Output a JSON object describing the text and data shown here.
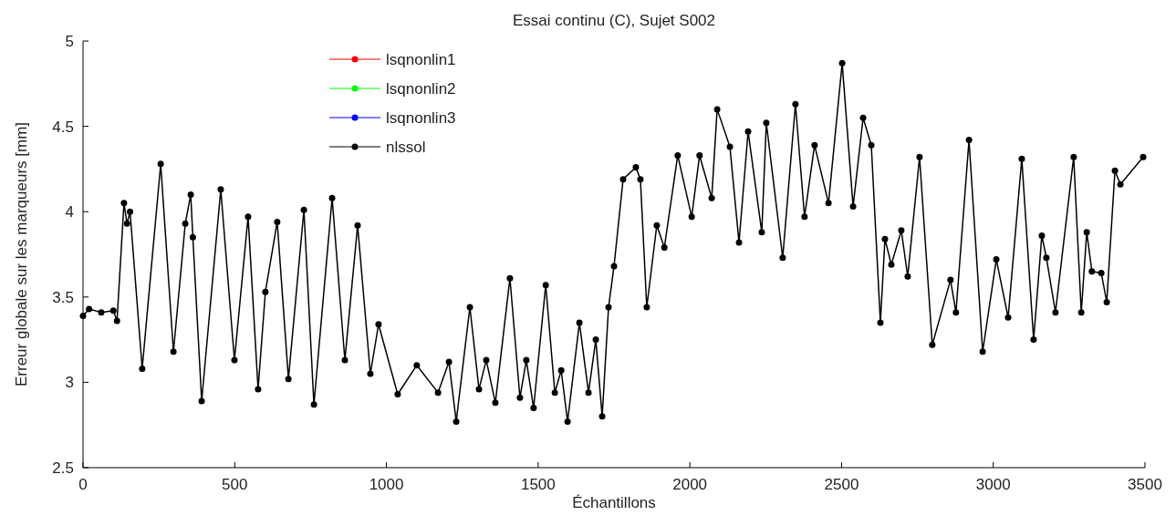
{
  "chart_data": {
    "type": "line",
    "title": "Essai continu (C), Sujet S002",
    "xlabel": "Échantillons",
    "ylabel": "Erreur globale sur les marqueurs [mm]",
    "x": [
      0,
      20,
      60,
      100,
      112,
      135,
      145,
      155,
      195,
      256,
      298,
      337,
      355,
      362,
      391,
      454,
      499,
      544,
      577,
      601,
      640,
      677,
      728,
      761,
      821,
      863,
      905,
      947,
      974,
      1037,
      1100,
      1170,
      1206,
      1230,
      1275,
      1305,
      1329,
      1359,
      1407,
      1440,
      1461,
      1485,
      1525,
      1555,
      1576,
      1597,
      1636,
      1666,
      1690,
      1711,
      1732,
      1750,
      1780,
      1822,
      1837,
      1858,
      1891,
      1916,
      1960,
      2006,
      2032,
      2072,
      2090,
      2132,
      2162,
      2192,
      2237,
      2252,
      2306,
      2348,
      2378,
      2411,
      2457,
      2502,
      2538,
      2571,
      2598,
      2628,
      2643,
      2664,
      2697,
      2718,
      2757,
      2799,
      2859,
      2877,
      2920,
      2965,
      3010,
      3049,
      3094,
      3133,
      3160,
      3175,
      3205,
      3265,
      3290,
      3308,
      3325,
      3356,
      3374,
      3401,
      3419,
      3494
    ],
    "series": [
      {
        "name": "lsqnonlin1",
        "color": "#ff0000",
        "values": [
          null,
          null,
          null,
          null,
          null,
          null,
          null,
          null,
          null,
          null,
          null,
          null,
          null,
          null,
          null,
          null,
          null,
          null,
          null,
          null,
          null,
          null,
          null,
          null,
          null,
          null,
          null,
          null,
          null,
          null,
          null,
          null,
          null,
          null,
          null,
          null,
          null,
          null,
          null,
          null,
          null,
          null,
          null,
          null,
          null,
          null,
          null,
          null,
          null,
          null,
          null,
          null,
          null,
          null,
          null,
          null,
          null,
          null,
          null,
          null,
          null,
          null,
          null,
          null,
          null,
          null,
          null,
          null,
          null,
          null,
          null,
          null,
          null,
          null,
          null,
          null,
          null,
          null,
          null,
          null,
          null,
          null,
          null,
          null,
          null,
          null,
          null,
          null,
          null,
          null,
          null,
          null,
          null,
          null,
          null,
          null,
          null,
          null,
          null,
          null,
          null,
          null,
          null,
          null
        ]
      },
      {
        "name": "lsqnonlin2",
        "color": "#00ff00",
        "values": [
          null,
          null,
          null,
          null,
          null,
          null,
          null,
          null,
          null,
          null,
          null,
          null,
          null,
          null,
          null,
          null,
          null,
          null,
          null,
          null,
          null,
          null,
          null,
          null,
          null,
          null,
          null,
          null,
          null,
          null,
          null,
          null,
          null,
          null,
          null,
          null,
          null,
          null,
          null,
          null,
          null,
          null,
          null,
          null,
          null,
          null,
          null,
          null,
          null,
          null,
          null,
          null,
          null,
          null,
          null,
          null,
          null,
          null,
          null,
          null,
          null,
          null,
          null,
          null,
          null,
          null,
          null,
          null,
          null,
          null,
          null,
          null,
          null,
          null,
          null,
          null,
          null,
          null,
          null,
          null,
          null,
          null,
          null,
          null,
          null,
          null,
          null,
          null,
          null,
          null,
          null,
          null,
          null,
          null,
          null,
          null,
          null,
          null,
          null,
          null,
          null,
          null,
          null,
          null
        ]
      },
      {
        "name": "lsqnonlin3",
        "color": "#0000ff",
        "values": [
          null,
          null,
          null,
          null,
          null,
          null,
          null,
          null,
          null,
          null,
          null,
          null,
          null,
          null,
          null,
          null,
          null,
          null,
          null,
          null,
          null,
          null,
          null,
          null,
          null,
          null,
          null,
          null,
          null,
          null,
          null,
          null,
          null,
          null,
          null,
          null,
          null,
          null,
          null,
          null,
          null,
          null,
          null,
          null,
          null,
          null,
          null,
          null,
          null,
          null,
          null,
          null,
          null,
          null,
          null,
          null,
          null,
          null,
          null,
          null,
          null,
          null,
          null,
          null,
          null,
          null,
          null,
          null,
          null,
          null,
          null,
          null,
          null,
          null,
          null,
          null,
          null,
          null,
          null,
          null,
          null,
          null,
          null,
          null,
          null,
          null,
          null,
          null,
          null,
          null,
          null,
          null,
          null,
          null,
          null,
          null,
          null,
          null,
          null,
          null,
          null,
          null,
          null,
          null
        ]
      },
      {
        "name": "nlssol",
        "color": "#000000",
        "values": [
          3.39,
          3.43,
          3.41,
          3.42,
          3.36,
          4.05,
          3.93,
          4.0,
          3.08,
          4.28,
          3.18,
          3.93,
          4.1,
          3.85,
          2.89,
          4.13,
          3.13,
          3.97,
          2.96,
          3.53,
          3.94,
          3.02,
          4.01,
          2.87,
          4.08,
          3.13,
          3.92,
          3.05,
          3.34,
          2.93,
          3.1,
          2.94,
          3.12,
          2.77,
          3.44,
          2.96,
          3.13,
          2.88,
          3.61,
          2.91,
          3.13,
          2.85,
          3.57,
          2.94,
          3.07,
          2.77,
          3.35,
          2.94,
          3.25,
          2.8,
          3.44,
          3.68,
          4.19,
          4.26,
          4.19,
          3.44,
          3.92,
          3.79,
          4.33,
          3.97,
          4.33,
          4.08,
          4.6,
          4.38,
          3.82,
          4.47,
          3.88,
          4.52,
          3.73,
          4.63,
          3.97,
          4.39,
          4.05,
          4.87,
          4.03,
          4.55,
          4.39,
          3.35,
          3.84,
          3.69,
          3.89,
          3.62,
          4.32,
          3.22,
          3.6,
          3.41,
          4.42,
          3.18,
          3.72,
          3.38,
          4.31,
          3.25,
          3.86,
          3.73,
          3.41,
          4.32,
          3.41,
          3.88,
          3.65,
          3.64,
          3.47,
          4.24,
          4.16,
          4.32
        ]
      }
    ],
    "xlim": [
      0,
      3500
    ],
    "xticks": [
      0,
      500,
      1000,
      1500,
      2000,
      2500,
      3000,
      3500
    ],
    "ylim": [
      2.5,
      5
    ],
    "yticks": [
      2.5,
      3,
      3.5,
      4,
      4.5,
      5
    ],
    "grid": false,
    "legend": "top left",
    "marker": "circle",
    "line_style": "solid"
  }
}
